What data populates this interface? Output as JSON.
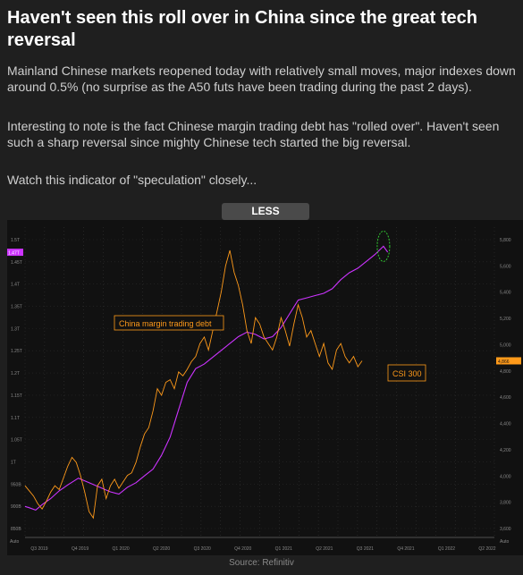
{
  "post": {
    "title": "Haven't seen this roll over in China since the great tech reversal",
    "paragraphs": [
      "Mainland Chinese markets reopened today with relatively small moves, major indexes down around 0.5% (no surprise as the A50 futs have been trading during the past 2 days).",
      "Interesting to note is the fact Chinese margin trading debt has \"rolled over\". Haven't seen such a sharp reversal since mighty Chinese tech started the big reversal.",
      "Watch this indicator of \"speculation\" closely..."
    ],
    "toggle_label": "LESS",
    "source": "Source: Refinitiv"
  },
  "colors": {
    "margin_debt": "#cc33ff",
    "csi300": "#ff9a1a",
    "highlight_circle": "#33cc33",
    "background": "#111111"
  },
  "chart_data": {
    "type": "line",
    "x_ticks": [
      "Q3 2019",
      "Q4 2019",
      "Q1 2020",
      "Q2 2020",
      "Q3 2020",
      "Q4 2020",
      "Q1 2021",
      "Q2 2021",
      "Q3 2021",
      "Q4 2021",
      "Q1 2022",
      "Q2 2022"
    ],
    "y_left_ticks": [
      "1.5T",
      "1.45T",
      "1.4T",
      "1.35T",
      "1.3T",
      "1.25T",
      "1.2T",
      "1.15T",
      "1.1T",
      "1.05T",
      "1T",
      "950B",
      "900B",
      "850B"
    ],
    "y_right_ticks": [
      "5,800",
      "5,600",
      "5,400",
      "5,200",
      "5,000",
      "4,800",
      "4,600",
      "4,400",
      "4,200",
      "4,000",
      "3,800",
      "3,600"
    ],
    "y_left_axis_label": "Auto",
    "y_right_axis_label": "Auto",
    "left_last_value": "1.47T",
    "right_last_value": "4,866",
    "annotations": [
      {
        "text": "China margin trading debt",
        "series": "margin"
      },
      {
        "text": "CSI 300",
        "series": "csi"
      }
    ],
    "series": [
      {
        "name": "China margin trading debt",
        "axis": "left",
        "x": [
          0,
          2,
          5,
          8,
          12,
          16,
          20,
          25,
          30,
          35,
          40,
          44,
          48,
          52,
          56,
          60,
          64,
          68,
          72,
          76,
          80,
          84,
          88,
          92,
          96,
          100,
          104,
          108,
          112,
          116,
          120,
          124,
          128,
          132,
          136,
          140,
          144,
          148,
          152,
          156,
          160,
          164,
          168,
          170
        ],
        "values": [
          0.908,
          0.905,
          0.9,
          0.912,
          0.925,
          0.942,
          0.955,
          0.97,
          0.96,
          0.95,
          0.94,
          0.935,
          0.95,
          0.96,
          0.975,
          0.99,
          1.02,
          1.06,
          1.12,
          1.18,
          1.21,
          1.22,
          1.235,
          1.25,
          1.265,
          1.28,
          1.29,
          1.285,
          1.275,
          1.28,
          1.3,
          1.33,
          1.36,
          1.365,
          1.37,
          1.375,
          1.385,
          1.405,
          1.42,
          1.43,
          1.445,
          1.46,
          1.478,
          1.465
        ]
      },
      {
        "name": "CSI 300",
        "axis": "right",
        "x": [
          0,
          2,
          4,
          6,
          8,
          10,
          12,
          14,
          16,
          18,
          20,
          22,
          24,
          26,
          28,
          30,
          32,
          34,
          36,
          38,
          40,
          42,
          44,
          46,
          48,
          50,
          52,
          54,
          56,
          58,
          60,
          62,
          64,
          66,
          68,
          70,
          72,
          74,
          76,
          78,
          80,
          82,
          84,
          86,
          88,
          90,
          92,
          94,
          96,
          98,
          100,
          102,
          104,
          106,
          108,
          110,
          112,
          114,
          116,
          118,
          120,
          122,
          124,
          126,
          128,
          130,
          132,
          134,
          136,
          138,
          140,
          142,
          144,
          146,
          148,
          150,
          152,
          154,
          156,
          158
        ],
        "values": [
          3900,
          3860,
          3820,
          3760,
          3720,
          3780,
          3850,
          3900,
          3870,
          3960,
          4050,
          4120,
          4080,
          3980,
          3850,
          3700,
          3650,
          3900,
          3950,
          3800,
          3900,
          3950,
          3880,
          3930,
          3980,
          4000,
          4080,
          4200,
          4300,
          4350,
          4480,
          4650,
          4600,
          4700,
          4720,
          4650,
          4780,
          4750,
          4800,
          4860,
          4900,
          5000,
          5050,
          4950,
          5100,
          5250,
          5400,
          5600,
          5720,
          5550,
          5450,
          5300,
          5100,
          5000,
          5200,
          5150,
          5050,
          5000,
          4950,
          5050,
          5200,
          5100,
          4980,
          5150,
          5300,
          5200,
          5050,
          5100,
          5000,
          4900,
          5000,
          4850,
          4800,
          4950,
          5000,
          4900,
          4850,
          4900,
          4820,
          4866
        ]
      }
    ],
    "x_range": [
      0,
      220
    ],
    "y_left_range": [
      0.84,
      1.52
    ],
    "y_right_range": [
      3500,
      5900
    ],
    "grid": true,
    "legend": "none"
  }
}
